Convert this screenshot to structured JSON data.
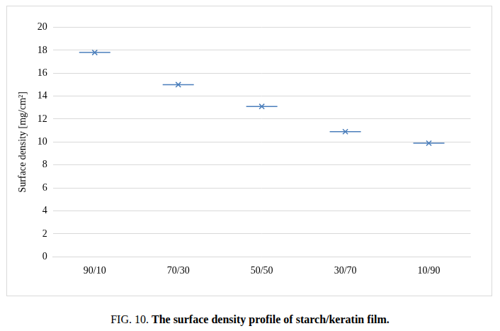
{
  "chart_data": {
    "type": "line",
    "title": "FIG. 10. The surface density profile of starch/keratin film.",
    "y_label": "Surface density [mg/cm²]",
    "categories": [
      "90/10",
      "70/30",
      "50/50",
      "30/70",
      "10/90"
    ],
    "values": [
      17.8,
      15.0,
      13.1,
      10.9,
      9.9
    ],
    "color": "#4a7ebb",
    "marker": "x",
    "line_style": "none",
    "ylim": [
      0,
      20
    ],
    "yticks": [
      0,
      2,
      4,
      6,
      8,
      10,
      12,
      14,
      16,
      18,
      20
    ],
    "grid": true
  }
}
